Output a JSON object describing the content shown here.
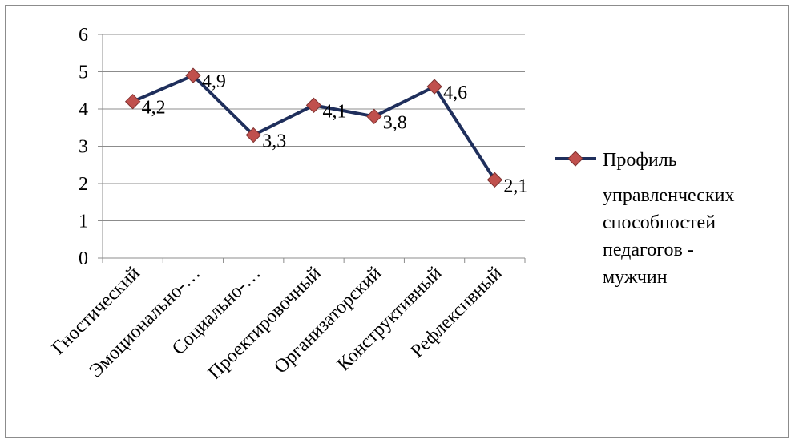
{
  "chart_data": {
    "type": "line",
    "categories": [
      "Гностический",
      "Эмоционально-…",
      "Социально-…",
      "Проектировочный",
      "Организаторский",
      "Конструктивный",
      "Рефлексивный"
    ],
    "series": [
      {
        "name": "Профиль управленческих способностей педагогов - мужчин",
        "values": [
          4.2,
          4.9,
          3.3,
          4.1,
          3.8,
          4.6,
          2.1
        ],
        "data_labels": [
          "4,2",
          "4,9",
          "3,3",
          "4,1",
          "3,8",
          "4,6",
          "2,1"
        ],
        "line_color": "#1f2f5c",
        "marker_color": "#c0504d",
        "marker": "diamond"
      }
    ],
    "y_ticks": [
      "0",
      "1",
      "2",
      "3",
      "4",
      "5",
      "6"
    ],
    "ylim": [
      0,
      6
    ],
    "grid": "horizontal",
    "legend_position": "right",
    "legend_lines": [
      "Профиль",
      "управленческих",
      "способностей",
      "педагогов -",
      "мужчин"
    ]
  }
}
